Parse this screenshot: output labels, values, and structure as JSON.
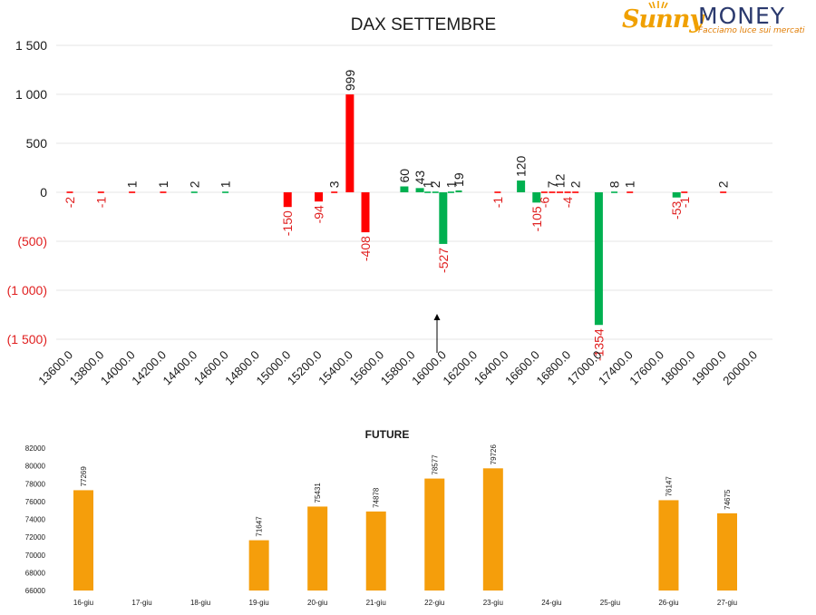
{
  "logo": {
    "brand_sunny": "Sunny",
    "brand_money": "MONEY",
    "tagline": "Facciamo luce sui mercati"
  },
  "colors": {
    "red": "#ff0000",
    "green": "#00b050",
    "orange": "#f59e0b",
    "grid": "#e6e6e6",
    "text": "#1a1a1a",
    "neg_label": "#e02020"
  },
  "chart_data": [
    {
      "type": "bar",
      "title": "DAX SETTEMBRE",
      "ylim": [
        -1500,
        1500
      ],
      "yticks": [
        1500,
        1000,
        500,
        0,
        -500,
        -1000,
        -1500
      ],
      "ytick_labels": [
        "1 500",
        "1 000",
        "500",
        "0",
        "(500)",
        "(1 000)",
        "(1 500)"
      ],
      "grid": true,
      "categories": [
        "13600.0",
        "13800.0",
        "14000.0",
        "14200.0",
        "14400.0",
        "14600.0",
        "14800.0",
        "15000.0",
        "15200.0",
        "15400.0",
        "15600.0",
        "15800.0",
        "16000.0",
        "16200.0",
        "16400.0",
        "16600.0",
        "16800.0",
        "17000.0",
        "17400.0",
        "17600.0",
        "18000.0",
        "19000.0",
        "20000.0"
      ],
      "annotation": "arrow pointing up at 16000.0",
      "bars": [
        {
          "x": 13600,
          "value": -2,
          "label": "-2",
          "color": "red"
        },
        {
          "x": 13800,
          "value": -1,
          "label": "-1",
          "color": "red"
        },
        {
          "x": 14000,
          "value": 1,
          "label": "1",
          "color": "red"
        },
        {
          "x": 14200,
          "value": 1,
          "label": "1",
          "color": "red"
        },
        {
          "x": 14400,
          "value": 2,
          "label": "2",
          "color": "green"
        },
        {
          "x": 14600,
          "value": 1,
          "label": "1",
          "color": "green"
        },
        {
          "x": 15000,
          "value": -150,
          "label": "-150",
          "color": "red"
        },
        {
          "x": 15200,
          "value": -94,
          "label": "-94",
          "color": "red"
        },
        {
          "x": 15300,
          "value": 3,
          "label": "3",
          "color": "red"
        },
        {
          "x": 15400,
          "value": 999,
          "label": "999",
          "color": "red"
        },
        {
          "x": 15500,
          "value": -408,
          "label": "-408",
          "color": "red"
        },
        {
          "x": 15750,
          "value": 60,
          "label": "60",
          "color": "green"
        },
        {
          "x": 15850,
          "value": 43,
          "label": "43",
          "color": "green"
        },
        {
          "x": 15900,
          "value": 1,
          "label": "1",
          "color": "green"
        },
        {
          "x": 15950,
          "value": 2,
          "label": "2",
          "color": "green"
        },
        {
          "x": 16000,
          "value": -527,
          "label": "-527",
          "color": "green"
        },
        {
          "x": 16050,
          "value": 1,
          "label": "1",
          "color": "green"
        },
        {
          "x": 16100,
          "value": 19,
          "label": "19",
          "color": "green"
        },
        {
          "x": 16350,
          "value": -1,
          "label": "-1",
          "color": "red"
        },
        {
          "x": 16500,
          "value": 120,
          "label": "120",
          "color": "green"
        },
        {
          "x": 16600,
          "value": -105,
          "label": "-105",
          "color": "green"
        },
        {
          "x": 16650,
          "value": -6,
          "label": "-6",
          "color": "red"
        },
        {
          "x": 16700,
          "value": 7,
          "label": "7",
          "color": "red"
        },
        {
          "x": 16750,
          "value": 12,
          "label": "12",
          "color": "red"
        },
        {
          "x": 16800,
          "value": -4,
          "label": "-4",
          "color": "red"
        },
        {
          "x": 16850,
          "value": 2,
          "label": "2",
          "color": "red"
        },
        {
          "x": 17000,
          "value": -1354,
          "label": "-1354",
          "color": "green"
        },
        {
          "x": 17200,
          "value": 8,
          "label": "8",
          "color": "green"
        },
        {
          "x": 17400,
          "value": 1,
          "label": "1",
          "color": "red"
        },
        {
          "x": 17800,
          "value": -53,
          "label": "-53",
          "color": "green"
        },
        {
          "x": 17900,
          "value": -1,
          "label": "-1",
          "color": "red"
        },
        {
          "x": 19000,
          "value": 2,
          "label": "2",
          "color": "red"
        }
      ]
    },
    {
      "type": "bar",
      "title": "FUTURE",
      "ylim": [
        66000,
        82000
      ],
      "yticks": [
        82000,
        80000,
        78000,
        76000,
        74000,
        72000,
        70000,
        68000,
        66000
      ],
      "ytick_labels": [
        "82000",
        "80000",
        "78000",
        "76000",
        "74000",
        "72000",
        "70000",
        "68000",
        "66000"
      ],
      "categories": [
        "16-giu",
        "17-giu",
        "18-giu",
        "19-giu",
        "20-giu",
        "21-giu",
        "22-giu",
        "23-giu",
        "24-giu",
        "25-giu",
        "26-giu",
        "27-giu"
      ],
      "values": [
        77269,
        null,
        null,
        71647,
        75431,
        74878,
        78577,
        79726,
        null,
        null,
        76147,
        74675
      ],
      "value_labels": [
        "77269",
        "",
        "",
        "71647",
        "75431",
        "74878",
        "78577",
        "79726",
        "",
        "",
        "76147",
        "74675"
      ]
    }
  ]
}
